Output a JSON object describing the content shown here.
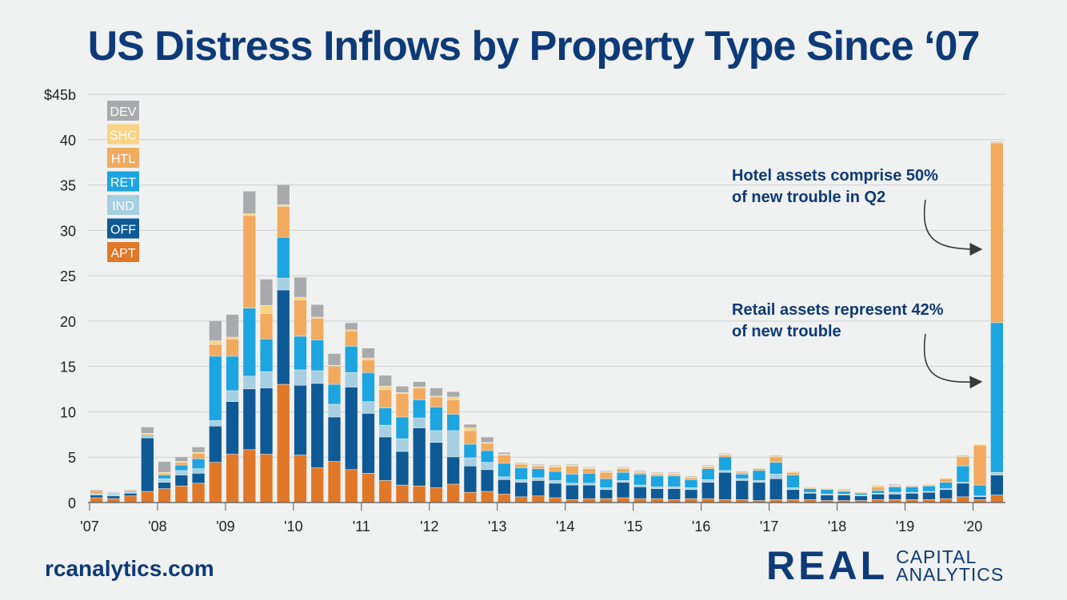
{
  "title": "US Distress Inflows by Property Type Since ‘07",
  "footer": {
    "url": "rcanalytics.com"
  },
  "logo": {
    "main": "REAL",
    "line1": "CAPITAL",
    "line2": "ANALYTICS"
  },
  "chart_data": {
    "type": "bar",
    "stacked": true,
    "ylim": [
      0,
      45
    ],
    "yticks": [
      "0",
      "5",
      "10",
      "15",
      "20",
      "25",
      "30",
      "35",
      "40",
      "$45b"
    ],
    "ytick_values": [
      0,
      5,
      10,
      15,
      20,
      25,
      30,
      35,
      40,
      45
    ],
    "grid": true,
    "xticks": [
      {
        "label": "'07",
        "index": 0
      },
      {
        "label": "'08",
        "index": 4
      },
      {
        "label": "'09",
        "index": 8
      },
      {
        "label": "'10",
        "index": 12
      },
      {
        "label": "'11",
        "index": 16
      },
      {
        "label": "'12",
        "index": 20
      },
      {
        "label": "'13",
        "index": 24
      },
      {
        "label": "'14",
        "index": 28
      },
      {
        "label": "'15",
        "index": 32
      },
      {
        "label": "'16",
        "index": 36
      },
      {
        "label": "'17",
        "index": 40
      },
      {
        "label": "'18",
        "index": 44
      },
      {
        "label": "'19",
        "index": 48
      },
      {
        "label": "'20",
        "index": 52
      }
    ],
    "legend_position": "top-left",
    "series": [
      {
        "name": "APT",
        "color": "#e07828",
        "values": [
          0.5,
          0.4,
          0.7,
          1.2,
          1.5,
          1.8,
          2.1,
          4.4,
          5.3,
          5.8,
          5.3,
          13.0,
          5.2,
          3.8,
          4.5,
          3.6,
          3.2,
          2.4,
          1.9,
          1.8,
          1.6,
          2.0,
          1.1,
          1.2,
          0.9,
          0.6,
          0.7,
          0.5,
          0.3,
          0.4,
          0.4,
          0.5,
          0.4,
          0.4,
          0.3,
          0.4,
          0.4,
          0.3,
          0.3,
          0.2,
          0.3,
          0.3,
          0.3,
          0.2,
          0.2,
          0.2,
          0.3,
          0.3,
          0.3,
          0.3,
          0.4,
          0.6,
          0.3,
          0.8
        ]
      },
      {
        "name": "OFF",
        "color": "#0e5a96",
        "values": [
          0.3,
          0.3,
          0.3,
          5.9,
          0.7,
          1.2,
          1.1,
          4.0,
          5.8,
          6.7,
          7.3,
          10.4,
          7.7,
          9.3,
          4.9,
          9.1,
          6.6,
          4.8,
          3.7,
          6.4,
          5.0,
          3.0,
          2.9,
          2.4,
          1.6,
          1.6,
          1.7,
          1.6,
          1.6,
          1.5,
          1.0,
          1.7,
          1.3,
          1.1,
          1.2,
          1.0,
          1.8,
          3.0,
          2.1,
          2.0,
          2.3,
          1.1,
          0.7,
          0.6,
          0.6,
          0.5,
          0.6,
          0.6,
          0.7,
          0.8,
          1.0,
          1.5,
          0.3,
          2.2
        ]
      },
      {
        "name": "IND",
        "color": "#a7cfe2",
        "values": [
          0.1,
          0.1,
          0.1,
          0.1,
          0.4,
          0.5,
          0.5,
          0.6,
          1.2,
          1.4,
          1.8,
          1.3,
          1.7,
          1.4,
          1.4,
          1.6,
          1.3,
          1.3,
          1.4,
          1.1,
          1.3,
          2.9,
          0.9,
          0.8,
          0.3,
          0.3,
          0.3,
          0.3,
          0.2,
          0.2,
          0.2,
          0.2,
          0.2,
          0.2,
          0.2,
          0.2,
          0.3,
          0.2,
          0.2,
          0.2,
          0.5,
          0.2,
          0.1,
          0.1,
          0.1,
          0.1,
          0.1,
          0.2,
          0.1,
          0.1,
          0.1,
          0.1,
          0.1,
          0.3
        ]
      },
      {
        "name": "RET",
        "color": "#1ca5e0",
        "values": [
          0.1,
          0.1,
          0.1,
          0.1,
          0.4,
          0.6,
          1.1,
          7.1,
          3.8,
          7.5,
          3.6,
          4.5,
          3.7,
          3.4,
          2.2,
          2.9,
          3.2,
          1.9,
          2.4,
          2.0,
          2.6,
          1.8,
          1.5,
          1.3,
          1.5,
          1.3,
          1.0,
          1.0,
          1.0,
          1.1,
          1.0,
          0.9,
          1.2,
          1.2,
          1.2,
          0.9,
          1.2,
          1.5,
          0.5,
          1.1,
          1.3,
          1.4,
          0.4,
          0.5,
          0.3,
          0.2,
          0.3,
          0.6,
          0.6,
          0.6,
          0.7,
          1.8,
          1.2,
          16.5
        ]
      },
      {
        "name": "HTL",
        "color": "#f2aa5e",
        "values": [
          0.3,
          0.1,
          0.1,
          0.2,
          0.2,
          0.3,
          0.6,
          1.3,
          1.9,
          10.2,
          2.8,
          3.4,
          4.0,
          2.4,
          2.0,
          1.7,
          1.4,
          2.0,
          2.6,
          1.3,
          1.1,
          1.6,
          1.5,
          0.8,
          0.9,
          0.4,
          0.3,
          0.5,
          0.9,
          0.5,
          0.7,
          0.4,
          0.2,
          0.2,
          0.2,
          0.2,
          0.2,
          0.2,
          0.2,
          0.2,
          0.6,
          0.3,
          0.1,
          0.1,
          0.1,
          0.1,
          0.4,
          0.1,
          0.1,
          0.1,
          0.4,
          1.0,
          4.4,
          19.8
        ]
      },
      {
        "name": "SHC",
        "color": "#fad383",
        "values": [
          0,
          0,
          0,
          0.1,
          0.1,
          0.1,
          0.1,
          0.4,
          0.2,
          0.2,
          0.9,
          0.2,
          0.3,
          0.1,
          0.1,
          0.1,
          0.2,
          0.4,
          0.1,
          0.1,
          0.1,
          0.3,
          0.3,
          0.1,
          0.1,
          0.1,
          0.1,
          0.1,
          0.1,
          0.1,
          0.1,
          0.1,
          0.1,
          0.1,
          0.1,
          0.1,
          0.1,
          0.1,
          0,
          0.1,
          0.1,
          0.1,
          0.1,
          0.1,
          0.1,
          0,
          0.2,
          0.1,
          0.1,
          0.1,
          0.1,
          0.1,
          0.1,
          0.1
        ]
      },
      {
        "name": "DEV",
        "color": "#a9aaab",
        "values": [
          0.1,
          0.1,
          0.1,
          0.7,
          1.2,
          0.5,
          0.6,
          2.2,
          2.5,
          2.5,
          2.9,
          2.2,
          2.2,
          1.4,
          1.3,
          0.8,
          1.1,
          1.2,
          0.7,
          0.6,
          0.9,
          0.6,
          0.4,
          0.6,
          0.2,
          0.1,
          0.1,
          0.1,
          0.1,
          0.1,
          0.1,
          0.1,
          0.1,
          0.1,
          0.1,
          0.1,
          0.1,
          0.1,
          0.1,
          0,
          0.1,
          0,
          0,
          0,
          0.1,
          0,
          0,
          0.1,
          0,
          0,
          0,
          0.1,
          0,
          0.1
        ]
      }
    ],
    "annotations": [
      {
        "line1": "Hotel assets comprise 50%",
        "line2": "of new trouble in Q2"
      },
      {
        "line1": "Retail assets represent 42%",
        "line2": "of new trouble"
      }
    ]
  }
}
